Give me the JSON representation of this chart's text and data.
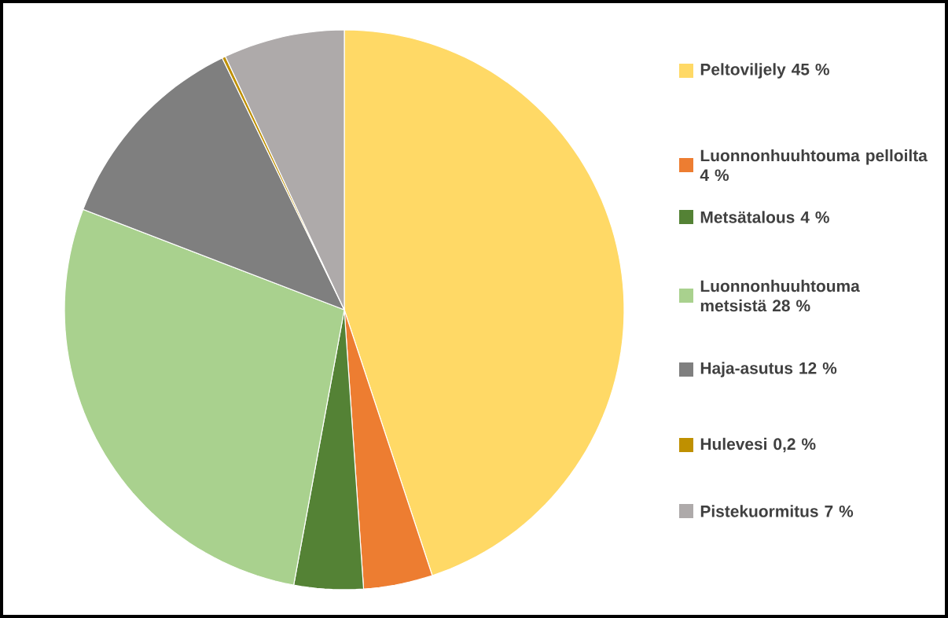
{
  "chart_data": {
    "type": "pie",
    "categories": [
      "Peltoviljely 45 %",
      "Luonnonhuuhtouma pelloilta 4 %",
      "Metsätalous 4 %",
      "Luonnonhuuhtouma metsistä 28 %",
      "Haja-asutus 12 %",
      "Hulevesi 0,2 %",
      "Pistekuormitus 7 %"
    ],
    "values": [
      45,
      4,
      4,
      28,
      12,
      0.2,
      7
    ],
    "colors": [
      "#ffd966",
      "#ed7d31",
      "#548235",
      "#a9d18e",
      "#7f7f7f",
      "#bf9000",
      "#aeaaaa"
    ],
    "legend": "right"
  }
}
